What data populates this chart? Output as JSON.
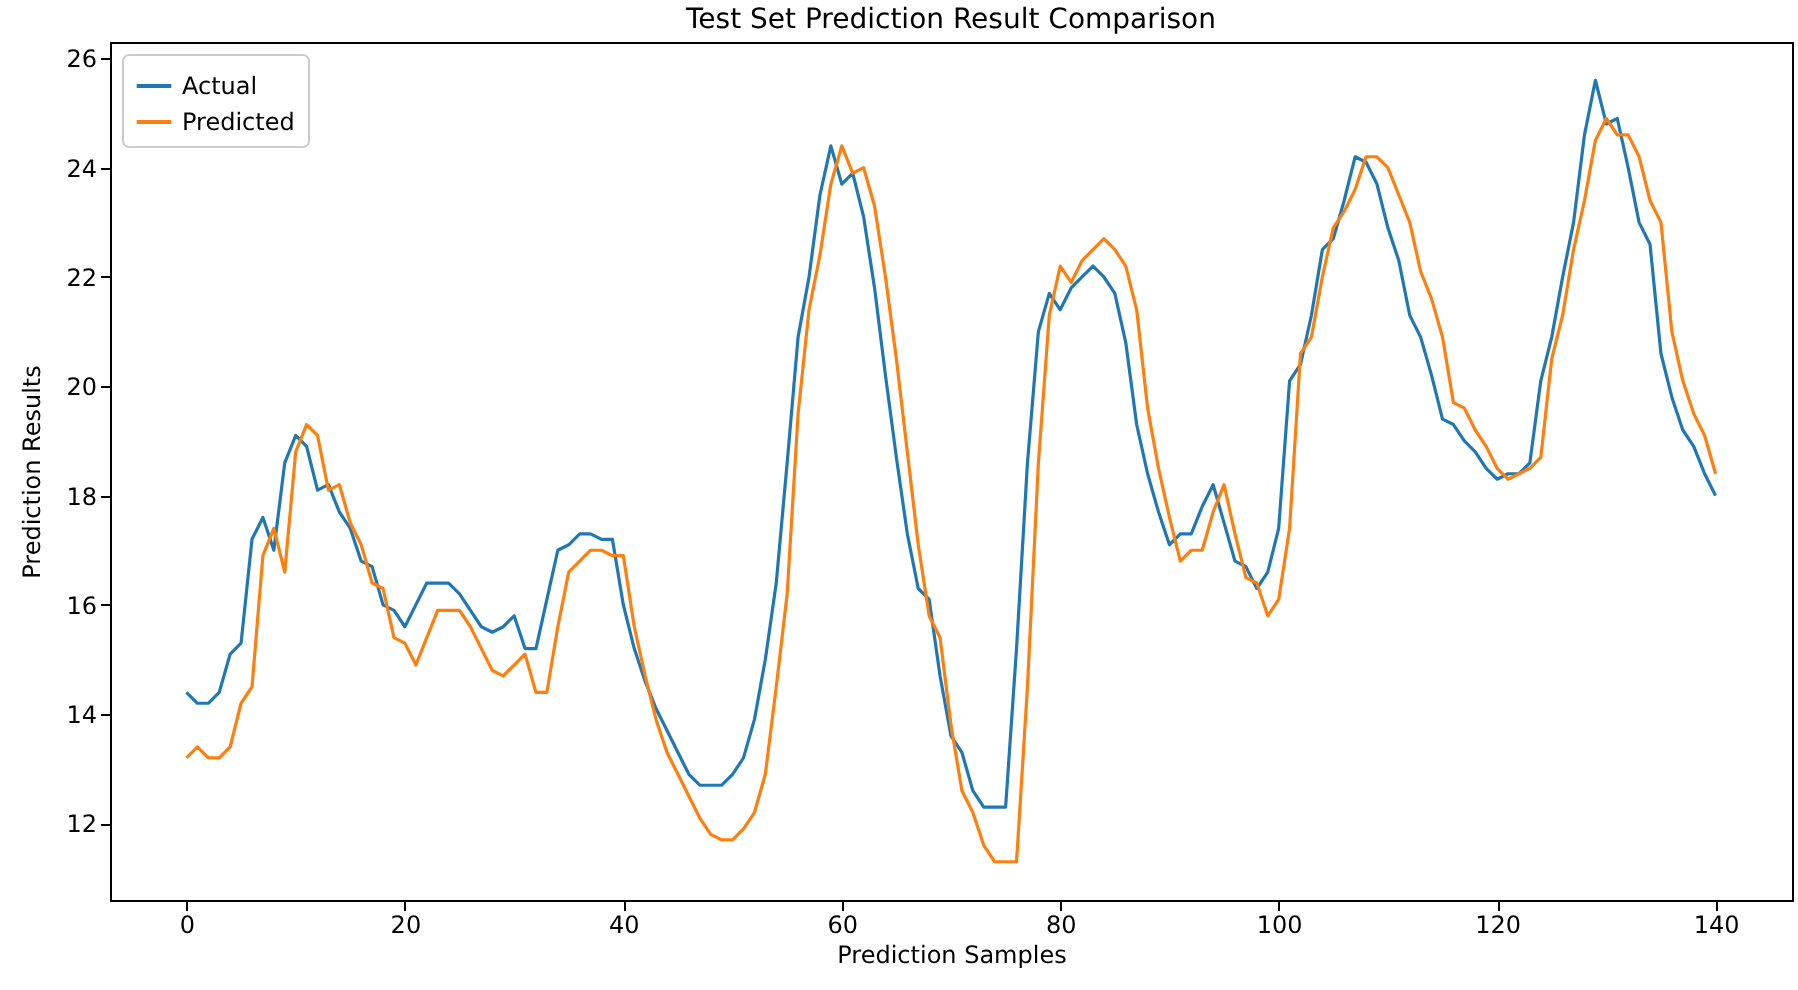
{
  "chart_data": {
    "type": "line",
    "title": "Test Set Prediction Result Comparison",
    "xlabel": "Prediction Samples",
    "ylabel": "Prediction Results",
    "x": [
      0,
      1,
      2,
      3,
      4,
      5,
      6,
      7,
      8,
      9,
      10,
      11,
      12,
      13,
      14,
      15,
      16,
      17,
      18,
      19,
      20,
      21,
      22,
      23,
      24,
      25,
      26,
      27,
      28,
      29,
      30,
      31,
      32,
      33,
      34,
      35,
      36,
      37,
      38,
      39,
      40,
      41,
      42,
      43,
      44,
      45,
      46,
      47,
      48,
      49,
      50,
      51,
      52,
      53,
      54,
      55,
      56,
      57,
      58,
      59,
      60,
      61,
      62,
      63,
      64,
      65,
      66,
      67,
      68,
      69,
      70,
      71,
      72,
      73,
      74,
      75,
      76,
      77,
      78,
      79,
      80,
      81,
      82,
      83,
      84,
      85,
      86,
      87,
      88,
      89,
      90,
      91,
      92,
      93,
      94,
      95,
      96,
      97,
      98,
      99,
      100,
      101,
      102,
      103,
      104,
      105,
      106,
      107,
      108,
      109,
      110,
      111,
      112,
      113,
      114,
      115,
      116,
      117,
      118,
      119,
      120,
      121,
      122,
      123,
      124,
      125,
      126,
      127,
      128,
      129,
      130,
      131,
      132,
      133,
      134,
      135,
      136,
      137,
      138,
      139,
      140
    ],
    "series": [
      {
        "name": "Actual",
        "color": "#1f77b4",
        "values": [
          14.4,
          14.2,
          14.2,
          14.4,
          15.1,
          15.3,
          17.2,
          17.6,
          17.0,
          18.6,
          19.1,
          18.9,
          18.1,
          18.2,
          17.7,
          17.4,
          16.8,
          16.7,
          16.0,
          15.9,
          15.6,
          16.0,
          16.4,
          16.4,
          16.4,
          16.2,
          15.9,
          15.6,
          15.5,
          15.6,
          15.8,
          15.2,
          15.2,
          16.1,
          17.0,
          17.1,
          17.3,
          17.3,
          17.2,
          17.2,
          16.0,
          15.2,
          14.6,
          14.1,
          13.7,
          13.3,
          12.9,
          12.7,
          12.7,
          12.7,
          12.9,
          13.2,
          13.9,
          15.0,
          16.4,
          18.6,
          20.9,
          22.0,
          23.5,
          24.4,
          23.7,
          23.9,
          23.1,
          21.8,
          20.2,
          18.7,
          17.3,
          16.3,
          16.1,
          14.7,
          13.6,
          13.3,
          12.6,
          12.3,
          12.3,
          12.3,
          15.2,
          18.6,
          21.0,
          21.7,
          21.4,
          21.8,
          22.0,
          22.2,
          22.0,
          21.7,
          20.8,
          19.3,
          18.4,
          17.7,
          17.1,
          17.3,
          17.3,
          17.8,
          18.2,
          17.5,
          16.8,
          16.7,
          16.3,
          16.6,
          17.4,
          20.1,
          20.4,
          21.3,
          22.5,
          22.7,
          23.4,
          24.2,
          24.1,
          23.7,
          22.9,
          22.3,
          21.3,
          20.9,
          20.2,
          19.4,
          19.3,
          19.0,
          18.8,
          18.5,
          18.3,
          18.4,
          18.4,
          18.6,
          20.1,
          20.9,
          22.0,
          23.0,
          24.6,
          25.6,
          24.8,
          24.9,
          24.0,
          23.0,
          22.6,
          20.6,
          19.8,
          19.2,
          18.9,
          18.4,
          18.0
        ]
      },
      {
        "name": "Predicted",
        "color": "#ff7f0e",
        "values": [
          13.2,
          13.4,
          13.2,
          13.2,
          13.4,
          14.2,
          14.5,
          16.9,
          17.4,
          16.6,
          18.8,
          19.3,
          19.1,
          18.1,
          18.2,
          17.5,
          17.1,
          16.4,
          16.3,
          15.4,
          15.3,
          14.9,
          15.4,
          15.9,
          15.9,
          15.9,
          15.6,
          15.2,
          14.8,
          14.7,
          14.9,
          15.1,
          14.4,
          14.4,
          15.6,
          16.6,
          16.8,
          17.0,
          17.0,
          16.9,
          16.9,
          15.6,
          14.7,
          13.9,
          13.3,
          12.9,
          12.5,
          12.1,
          11.8,
          11.7,
          11.7,
          11.9,
          12.2,
          12.9,
          14.5,
          16.2,
          19.5,
          21.4,
          22.4,
          23.7,
          24.4,
          23.9,
          24.0,
          23.3,
          22.0,
          20.5,
          18.8,
          17.1,
          15.8,
          15.4,
          13.8,
          12.6,
          12.2,
          11.6,
          11.3,
          11.3,
          11.3,
          14.5,
          18.6,
          21.3,
          22.2,
          21.9,
          22.3,
          22.5,
          22.7,
          22.5,
          22.2,
          21.4,
          19.6,
          18.5,
          17.6,
          16.8,
          17.0,
          17.0,
          17.7,
          18.2,
          17.3,
          16.5,
          16.4,
          15.8,
          16.1,
          17.4,
          20.6,
          20.9,
          22.0,
          22.9,
          23.2,
          23.6,
          24.2,
          24.2,
          24.0,
          23.5,
          23.0,
          22.1,
          21.6,
          20.9,
          19.7,
          19.6,
          19.2,
          18.9,
          18.5,
          18.3,
          18.4,
          18.5,
          18.7,
          20.5,
          21.3,
          22.5,
          23.4,
          24.5,
          24.9,
          24.6,
          24.6,
          24.2,
          23.4,
          23.0,
          21.0,
          20.1,
          19.5,
          19.1,
          18.4
        ]
      }
    ],
    "xlim": [
      -7,
      147
    ],
    "xticks": [
      0,
      20,
      40,
      60,
      80,
      100,
      120,
      140
    ],
    "ylim": [
      10.6,
      26.3
    ],
    "yticks": [
      12,
      14,
      16,
      18,
      20,
      22,
      24,
      26
    ],
    "legend": "top left",
    "grid": false
  }
}
